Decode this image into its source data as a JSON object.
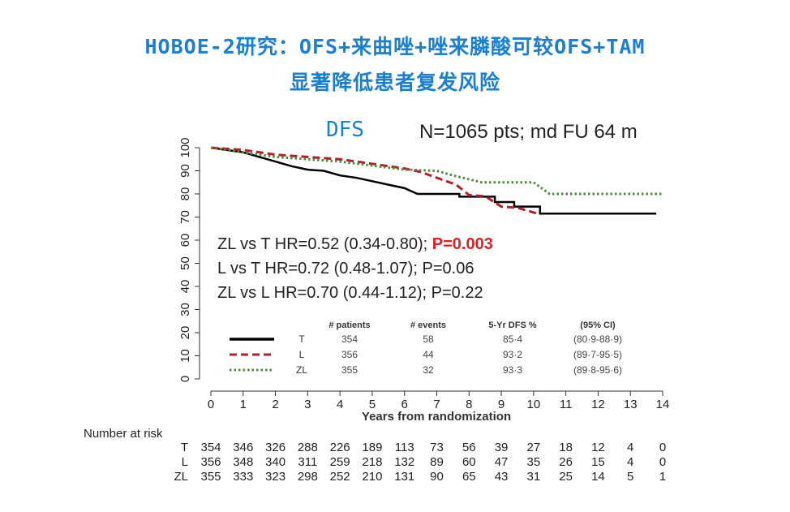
{
  "title_line1": "HOBOE-2研究：OFS+来曲唑+唑来膦酸可较OFS+TAM",
  "title_line2": "显著降低患者复发风险",
  "chart_data": {
    "type": "line",
    "title": "DFS",
    "subtitle": "N=1065 pts; md FU 64 m",
    "xlabel": "Years from randomization",
    "ylabel": "",
    "xlim": [
      0,
      14
    ],
    "ylim": [
      0,
      100
    ],
    "xticks": [
      0,
      1,
      2,
      3,
      4,
      5,
      6,
      7,
      8,
      9,
      10,
      11,
      12,
      13,
      14
    ],
    "yticks": [
      0,
      10,
      20,
      30,
      40,
      50,
      60,
      70,
      80,
      90,
      100
    ],
    "series": [
      {
        "name": "T",
        "color": "#000000",
        "style": "solid",
        "points": [
          [
            0,
            100
          ],
          [
            0.5,
            99
          ],
          [
            1,
            98
          ],
          [
            1.5,
            96
          ],
          [
            2,
            94
          ],
          [
            2.5,
            92
          ],
          [
            3,
            90.5
          ],
          [
            3.5,
            90
          ],
          [
            4,
            88
          ],
          [
            4.5,
            87
          ],
          [
            5,
            85.5
          ],
          [
            5.5,
            84
          ],
          [
            6,
            82.5
          ],
          [
            6.4,
            80
          ],
          [
            7.7,
            80
          ],
          [
            7.7,
            78.8
          ],
          [
            8.8,
            78.8
          ],
          [
            8.8,
            76.5
          ],
          [
            9.4,
            76.5
          ],
          [
            9.4,
            74.5
          ],
          [
            10.2,
            74.5
          ],
          [
            10.2,
            71.5
          ],
          [
            13.8,
            71.5
          ]
        ]
      },
      {
        "name": "L",
        "color": "#b0202a",
        "style": "dashed",
        "points": [
          [
            0,
            100
          ],
          [
            1,
            99
          ],
          [
            2,
            97
          ],
          [
            3,
            96
          ],
          [
            4,
            95
          ],
          [
            5,
            93
          ],
          [
            6,
            91
          ],
          [
            6.5,
            89.5
          ],
          [
            7,
            87
          ],
          [
            7.6,
            84
          ],
          [
            8,
            79.5
          ],
          [
            8.5,
            79
          ],
          [
            9,
            74.5
          ],
          [
            9.5,
            74
          ],
          [
            10,
            72
          ],
          [
            10.2,
            71
          ]
        ]
      },
      {
        "name": "ZL",
        "color": "#4f8a3a",
        "style": "dotted",
        "points": [
          [
            0,
            100
          ],
          [
            2,
            96
          ],
          [
            4,
            94
          ],
          [
            6,
            90.5
          ],
          [
            7,
            90
          ],
          [
            7.5,
            88
          ],
          [
            8.4,
            85
          ],
          [
            10,
            85
          ],
          [
            10.3,
            82
          ],
          [
            10.5,
            80
          ],
          [
            14,
            80
          ]
        ]
      }
    ],
    "annotations": [
      {
        "text": "ZL vs T HR=0.52 (0.34-0.80); ",
        "p": "P=0.003",
        "p_color": "#e02020"
      },
      {
        "text": "L vs T HR=0.72 (0.48-1.07); P=0.06"
      },
      {
        "text": "ZL vs L HR=0.70 (0.44-1.12); P=0.22"
      }
    ],
    "legend_table": {
      "headers": [
        "# patients",
        "# events",
        "5-Yr DFS %",
        "(95% CI)"
      ],
      "rows": [
        {
          "name": "T",
          "values": [
            "354",
            "58",
            "85·4",
            "(80·9-88·9)"
          ]
        },
        {
          "name": "L",
          "values": [
            "356",
            "44",
            "93·2",
            "(89·7-95·5)"
          ]
        },
        {
          "name": "ZL",
          "values": [
            "355",
            "32",
            "93·3",
            "(89·8-95·6)"
          ]
        }
      ]
    },
    "risk_table": {
      "label": "Number at risk",
      "rows": [
        {
          "name": "T",
          "values": [
            "354",
            "346",
            "326",
            "288",
            "226",
            "189",
            "113",
            "73",
            "56",
            "39",
            "27",
            "18",
            "12",
            "4",
            "0"
          ]
        },
        {
          "name": "L",
          "values": [
            "356",
            "348",
            "340",
            "311",
            "259",
            "218",
            "132",
            "89",
            "60",
            "47",
            "35",
            "26",
            "15",
            "4",
            "0"
          ]
        },
        {
          "name": "ZL",
          "values": [
            "355",
            "333",
            "323",
            "298",
            "252",
            "210",
            "131",
            "90",
            "65",
            "43",
            "31",
            "25",
            "14",
            "5",
            "1"
          ]
        }
      ]
    }
  }
}
